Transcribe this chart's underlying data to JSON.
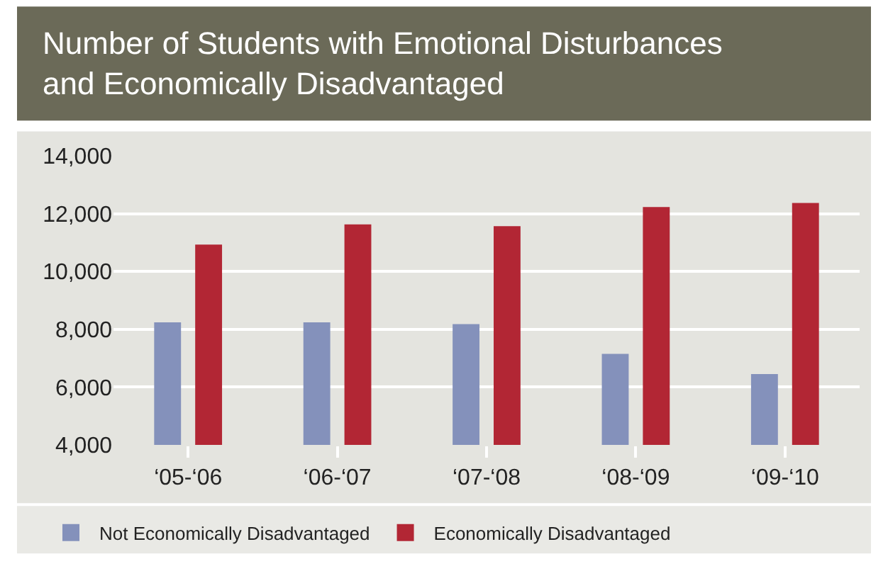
{
  "chart_data": {
    "type": "bar",
    "title": "Number of Students with Emotional Disturbances\nand Economically Disadvantaged",
    "categories": [
      "‘05-‘06",
      "‘06-‘07",
      "‘07-‘08",
      "‘08-‘09",
      "‘09-‘10"
    ],
    "series": [
      {
        "name": "Not Economically Disadvantaged",
        "color": "#8491bb",
        "values": [
          8240,
          8240,
          8180,
          7150,
          6450
        ]
      },
      {
        "name": "Economically Disadvantaged",
        "color": "#b22634",
        "values": [
          10930,
          11630,
          11570,
          12230,
          12370
        ]
      }
    ],
    "ylim": [
      4000,
      14000
    ],
    "yticks": [
      {
        "value": 4000,
        "label": "4,000"
      },
      {
        "value": 6000,
        "label": "6,000"
      },
      {
        "value": 8000,
        "label": "8,000"
      },
      {
        "value": 10000,
        "label": "10,000"
      },
      {
        "value": 12000,
        "label": "12,000"
      },
      {
        "value": 14000,
        "label": "14,000"
      }
    ],
    "grid": "y",
    "legend": "bottom"
  }
}
